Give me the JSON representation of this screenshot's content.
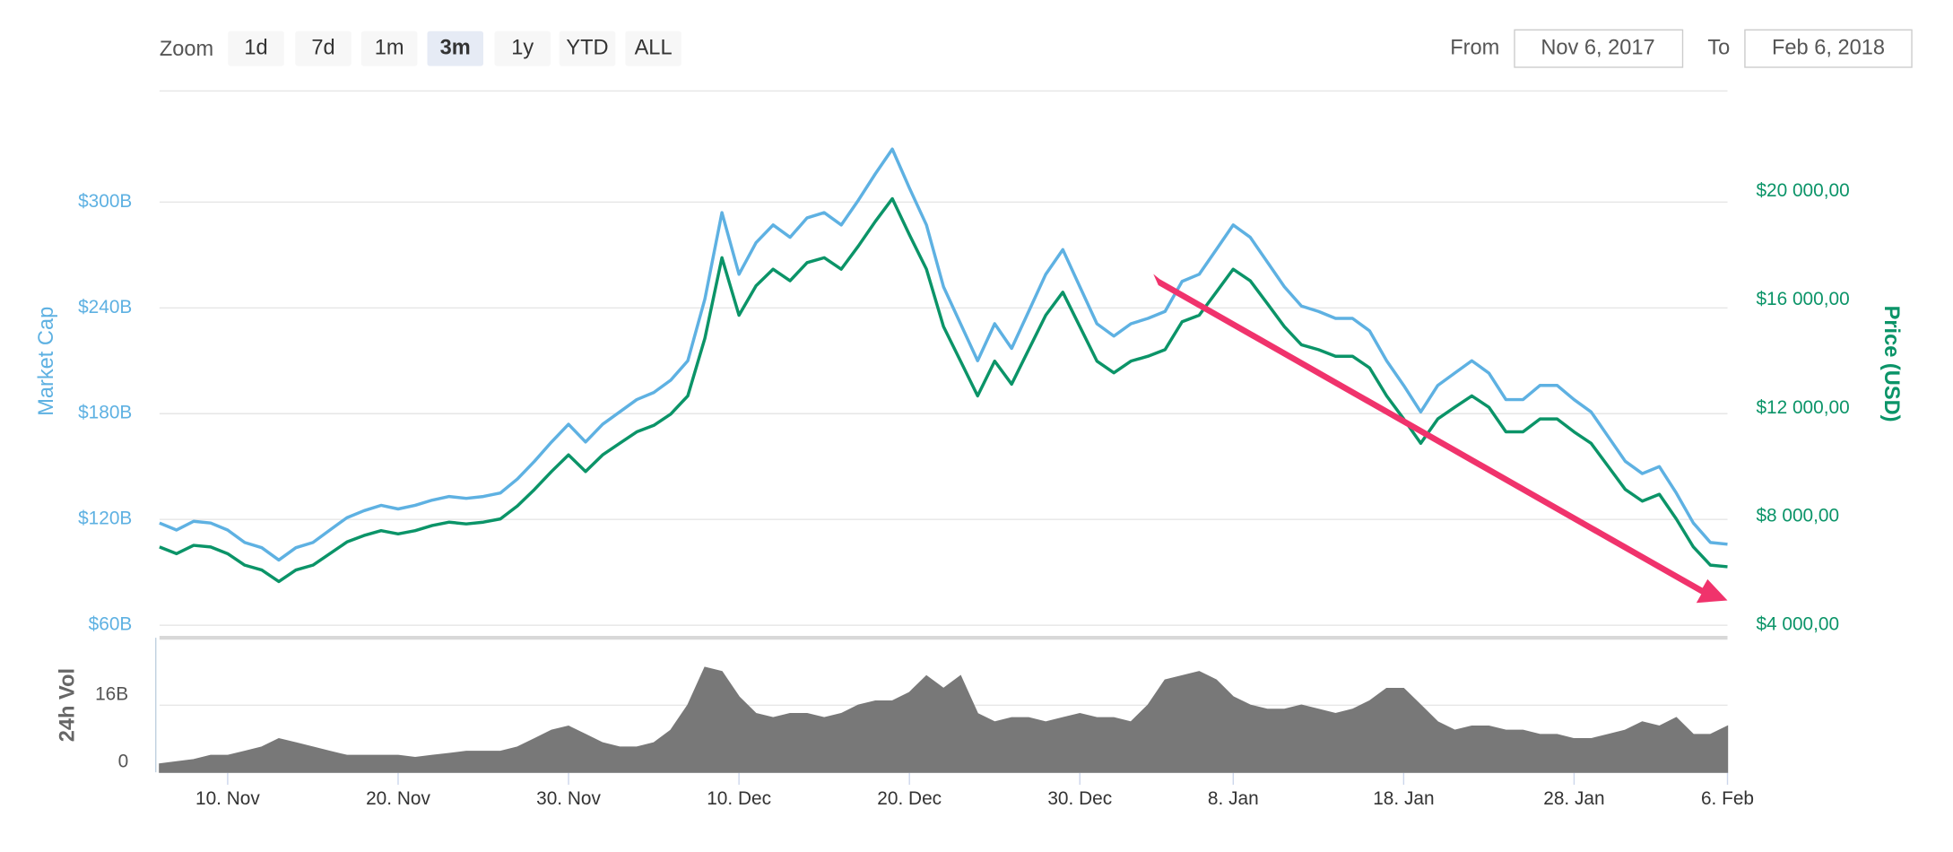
{
  "toolbar": {
    "zoom_label": "Zoom",
    "buttons": [
      "1d",
      "7d",
      "1m",
      "3m",
      "1y",
      "YTD",
      "ALL"
    ],
    "selected_button": 3,
    "from_label": "From",
    "from": "Nov 6, 2017",
    "to_label": "To",
    "to": "Feb 6, 2018"
  },
  "chart_data": [
    {
      "type": "line",
      "ylabel": "Market Cap",
      "y2label": "Price (USD)",
      "x": [
        "2017-11-06",
        "2017-11-07",
        "2017-11-08",
        "2017-11-09",
        "2017-11-10",
        "2017-11-11",
        "2017-11-12",
        "2017-11-13",
        "2017-11-14",
        "2017-11-15",
        "2017-11-16",
        "2017-11-17",
        "2017-11-18",
        "2017-11-19",
        "2017-11-20",
        "2017-11-21",
        "2017-11-22",
        "2017-11-23",
        "2017-11-24",
        "2017-11-25",
        "2017-11-26",
        "2017-11-27",
        "2017-11-28",
        "2017-11-29",
        "2017-11-30",
        "2017-12-01",
        "2017-12-02",
        "2017-12-03",
        "2017-12-04",
        "2017-12-05",
        "2017-12-06",
        "2017-12-07",
        "2017-12-08",
        "2017-12-09",
        "2017-12-10",
        "2017-12-11",
        "2017-12-12",
        "2017-12-13",
        "2017-12-14",
        "2017-12-15",
        "2017-12-16",
        "2017-12-17",
        "2017-12-18",
        "2017-12-19",
        "2017-12-20",
        "2017-12-21",
        "2017-12-22",
        "2017-12-23",
        "2017-12-24",
        "2017-12-25",
        "2017-12-26",
        "2017-12-27",
        "2017-12-28",
        "2017-12-29",
        "2017-12-30",
        "2017-12-31",
        "2018-01-01",
        "2018-01-02",
        "2018-01-03",
        "2018-01-04",
        "2018-01-05",
        "2018-01-06",
        "2018-01-07",
        "2018-01-08",
        "2018-01-09",
        "2018-01-10",
        "2018-01-11",
        "2018-01-12",
        "2018-01-13",
        "2018-01-14",
        "2018-01-15",
        "2018-01-16",
        "2018-01-17",
        "2018-01-18",
        "2018-01-19",
        "2018-01-20",
        "2018-01-21",
        "2018-01-22",
        "2018-01-23",
        "2018-01-24",
        "2018-01-25",
        "2018-01-26",
        "2018-01-27",
        "2018-01-28",
        "2018-01-29",
        "2018-01-30",
        "2018-01-31",
        "2018-02-01",
        "2018-02-02",
        "2018-02-03",
        "2018-02-04",
        "2018-02-05",
        "2018-02-06"
      ],
      "series": [
        {
          "color": "#5eb1e2",
          "values": [
            118,
            114,
            119,
            118,
            114,
            107,
            104,
            97,
            104,
            107,
            114,
            121,
            125,
            128,
            126,
            128,
            131,
            133,
            132,
            133,
            135,
            143,
            153,
            164,
            174,
            164,
            174,
            181,
            188,
            192,
            199,
            210,
            245,
            294,
            259,
            277,
            287,
            280,
            291,
            294,
            287,
            301,
            316,
            330,
            308,
            287,
            252,
            231,
            210,
            231,
            217,
            238,
            259,
            273,
            252,
            231,
            224,
            231,
            234,
            238,
            255,
            259,
            273,
            287,
            280,
            266,
            252,
            241,
            238,
            234,
            234,
            227,
            210,
            196,
            181,
            196,
            203,
            210,
            203,
            188,
            188,
            196,
            196,
            188,
            181,
            167,
            153,
            146,
            150,
            135,
            118,
            107,
            106
          ]
        },
        {
          "color": "#0b9468",
          "axis": "y2",
          "values": [
            6890,
            6640,
            6950,
            6890,
            6640,
            6220,
            6040,
            5610,
            6040,
            6220,
            6640,
            7070,
            7310,
            7490,
            7370,
            7490,
            7680,
            7800,
            7740,
            7800,
            7920,
            8400,
            9010,
            9670,
            10280,
            9670,
            10280,
            10710,
            11130,
            11370,
            11790,
            12460,
            14580,
            17550,
            15430,
            16520,
            17130,
            16700,
            17370,
            17550,
            17130,
            17980,
            18890,
            19730,
            18400,
            17130,
            15010,
            13740,
            12460,
            13740,
            12890,
            14160,
            15430,
            16280,
            15010,
            13740,
            13310,
            13740,
            13920,
            14160,
            15190,
            15430,
            16280,
            17130,
            16700,
            15860,
            15010,
            14340,
            14160,
            13920,
            13920,
            13490,
            12460,
            11610,
            10710,
            11610,
            12040,
            12460,
            12040,
            11130,
            11130,
            11610,
            11610,
            11130,
            10710,
            9860,
            9010,
            8580,
            8830,
            7920,
            6890,
            6220,
            6160
          ]
        }
      ],
      "xlim": [
        "2017-11-06",
        "2018-02-06"
      ],
      "xticks": [
        {
          "value": "2017-11-10",
          "label": "10. Nov"
        },
        {
          "value": "2017-11-20",
          "label": "20. Nov"
        },
        {
          "value": "2017-11-30",
          "label": "30. Nov"
        },
        {
          "value": "2017-12-10",
          "label": "10. Dec"
        },
        {
          "value": "2017-12-20",
          "label": "20. Dec"
        },
        {
          "value": "2017-12-30",
          "label": "30. Dec"
        },
        {
          "value": "2018-01-08",
          "label": "8. Jan"
        },
        {
          "value": "2018-01-18",
          "label": "18. Jan"
        },
        {
          "value": "2018-01-28",
          "label": "28. Jan"
        },
        {
          "value": "2018-02-06",
          "label": "6. Feb"
        }
      ],
      "ylim": [
        60,
        363
      ],
      "yticks": [
        {
          "value": 60,
          "label": "$60B"
        },
        {
          "value": 120,
          "label": "$120B"
        },
        {
          "value": 180,
          "label": "$180B"
        },
        {
          "value": 240,
          "label": "$240B"
        },
        {
          "value": 300,
          "label": "$300B"
        }
      ],
      "y2lim": [
        4000,
        23700
      ],
      "y2ticks": [
        {
          "value": 4000,
          "label": "$4 000,00"
        },
        {
          "value": 8000,
          "label": "$8 000,00"
        },
        {
          "value": 12000,
          "label": "$12 000,00"
        },
        {
          "value": 16000,
          "label": "$16 000,00"
        },
        {
          "value": 20000,
          "label": "$20 000,00"
        }
      ],
      "grid": true
    },
    {
      "type": "area",
      "ylabel": "24h Vol",
      "color": "#787878",
      "x": [
        "2017-11-06",
        "2017-11-07",
        "2017-11-08",
        "2017-11-09",
        "2017-11-10",
        "2017-11-11",
        "2017-11-12",
        "2017-11-13",
        "2017-11-14",
        "2017-11-15",
        "2017-11-16",
        "2017-11-17",
        "2017-11-18",
        "2017-11-19",
        "2017-11-20",
        "2017-11-21",
        "2017-11-22",
        "2017-11-23",
        "2017-11-24",
        "2017-11-25",
        "2017-11-26",
        "2017-11-27",
        "2017-11-28",
        "2017-11-29",
        "2017-11-30",
        "2017-12-01",
        "2017-12-02",
        "2017-12-03",
        "2017-12-04",
        "2017-12-05",
        "2017-12-06",
        "2017-12-07",
        "2017-12-08",
        "2017-12-09",
        "2017-12-10",
        "2017-12-11",
        "2017-12-12",
        "2017-12-13",
        "2017-12-14",
        "2017-12-15",
        "2017-12-16",
        "2017-12-17",
        "2017-12-18",
        "2017-12-19",
        "2017-12-20",
        "2017-12-21",
        "2017-12-22",
        "2017-12-23",
        "2017-12-24",
        "2017-12-25",
        "2017-12-26",
        "2017-12-27",
        "2017-12-28",
        "2017-12-29",
        "2017-12-30",
        "2017-12-31",
        "2018-01-01",
        "2018-01-02",
        "2018-01-03",
        "2018-01-04",
        "2018-01-05",
        "2018-01-06",
        "2018-01-07",
        "2018-01-08",
        "2018-01-09",
        "2018-01-10",
        "2018-01-11",
        "2018-01-12",
        "2018-01-13",
        "2018-01-14",
        "2018-01-15",
        "2018-01-16",
        "2018-01-17",
        "2018-01-18",
        "2018-01-19",
        "2018-01-20",
        "2018-01-21",
        "2018-01-22",
        "2018-01-23",
        "2018-01-24",
        "2018-01-25",
        "2018-01-26",
        "2018-01-27",
        "2018-01-28",
        "2018-01-29",
        "2018-01-30",
        "2018-01-31",
        "2018-02-01",
        "2018-02-02",
        "2018-02-03",
        "2018-02-04",
        "2018-02-05",
        "2018-02-06"
      ],
      "values": [
        2,
        2.5,
        3,
        4,
        4,
        5,
        6,
        8,
        7,
        6,
        5,
        4,
        4,
        4,
        4,
        3.5,
        4,
        4.5,
        5,
        5,
        5,
        6,
        8,
        10,
        11,
        9,
        7,
        6,
        6,
        7,
        10,
        16,
        25,
        24,
        18,
        14,
        13,
        14,
        14,
        13,
        14,
        16,
        17,
        17,
        19,
        23,
        20,
        23,
        14,
        12,
        13,
        13,
        12,
        13,
        14,
        13,
        13,
        12,
        16,
        22,
        23,
        24,
        22,
        18,
        16,
        15,
        15,
        16,
        15,
        14,
        15,
        17,
        20,
        20,
        16,
        12,
        10,
        11,
        11,
        10,
        10,
        9,
        9,
        8,
        8,
        9,
        10,
        12,
        11,
        13,
        9,
        9,
        11
      ],
      "xlim": [
        "2017-11-06",
        "2018-02-06"
      ],
      "ylim": [
        0,
        30
      ],
      "yticks": [
        0,
        {
          "value": 16,
          "label": "16B"
        }
      ],
      "grid": true
    }
  ]
}
